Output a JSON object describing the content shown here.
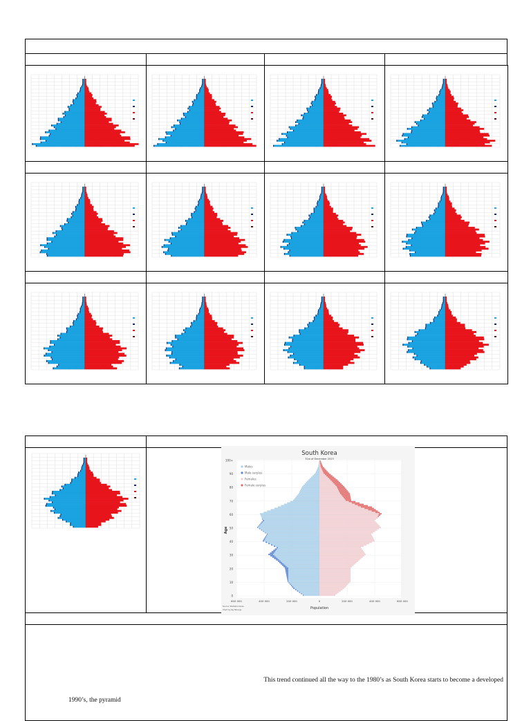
{
  "document": {
    "paragraph_line1": "This trend continued all the way to the 1980’s as South Korea starts to become a developed",
    "paragraph_line2": "1990’s, the pyramid"
  },
  "chart_data": {
    "type": "bar",
    "subtype": "population-pyramid",
    "title": "South Korea",
    "subtitle": "31st of December 2023",
    "xlabel": "Population",
    "ylabel": "Age",
    "xlim": [
      -600000,
      600000
    ],
    "x_tick_labels": [
      "600 000",
      "400 000",
      "200 000",
      "0",
      "200 000",
      "400 000",
      "600 000"
    ],
    "ylim": [
      0,
      100
    ],
    "y_tick_labels": [
      "0",
      "10",
      "20",
      "30",
      "40",
      "50",
      "60",
      "70",
      "80",
      "90",
      "100+"
    ],
    "legend": [
      "Males",
      "Male surplus",
      "Females",
      "Female surplus"
    ],
    "legend_position": "top-left",
    "source": [
      "Source: Statistics Korea",
      "Chart by Kaj Tallungs"
    ],
    "colors": {
      "males": "#a9cfe9",
      "male_surplus": "#5b86d1",
      "females": "#f0cdd0",
      "female_surplus": "#e06a6a"
    },
    "ages": [
      0,
      5,
      10,
      15,
      20,
      25,
      30,
      35,
      40,
      45,
      50,
      55,
      60,
      65,
      70,
      75,
      80,
      85,
      90,
      95,
      100
    ],
    "males": [
      120000,
      190000,
      230000,
      240000,
      250000,
      300000,
      370000,
      310000,
      410000,
      380000,
      450000,
      410000,
      430000,
      300000,
      190000,
      150000,
      125000,
      80000,
      30000,
      8000,
      1000
    ],
    "females": [
      115000,
      180000,
      225000,
      225000,
      225000,
      280000,
      335000,
      300000,
      400000,
      375000,
      445000,
      400000,
      450000,
      380000,
      230000,
      220000,
      180000,
      130000,
      70000,
      25000,
      5000
    ]
  },
  "thumbnails": [
    {
      "label": "pyramid-1"
    },
    {
      "label": "pyramid-2"
    },
    {
      "label": "pyramid-3"
    },
    {
      "label": "pyramid-4"
    },
    {
      "label": "pyramid-5"
    },
    {
      "label": "pyramid-6"
    },
    {
      "label": "pyramid-7"
    },
    {
      "label": "pyramid-8"
    },
    {
      "label": "pyramid-9"
    },
    {
      "label": "pyramid-10"
    },
    {
      "label": "pyramid-11"
    },
    {
      "label": "pyramid-12"
    },
    {
      "label": "pyramid-13"
    }
  ]
}
